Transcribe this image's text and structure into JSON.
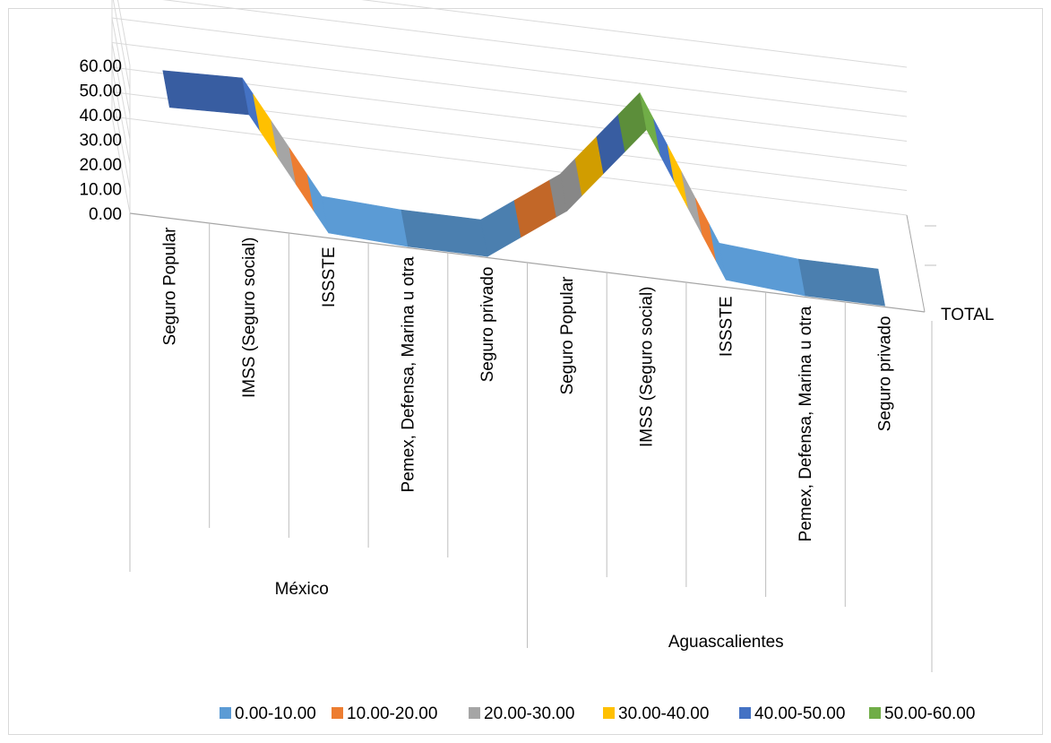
{
  "chart_data": {
    "type": "surface",
    "title": "",
    "z_axis": {
      "ticks": [
        "0.00",
        "10.00",
        "20.00",
        "30.00",
        "40.00",
        "50.00",
        "60.00"
      ],
      "range": [
        0,
        60
      ]
    },
    "groups": [
      {
        "name": "México",
        "categories": [
          "Seguro Popular",
          "IMSS (Seguro social)",
          "ISSSTE",
          "Pemex, Defensa, Marina u otra",
          "Seguro privado"
        ]
      },
      {
        "name": "Aguascalientes",
        "categories": [
          "Seguro Popular",
          "IMSS (Seguro social)",
          "ISSSTE",
          "Pemex, Defensa, Marina u otra",
          "Seguro privado"
        ]
      }
    ],
    "series": [
      {
        "name": "TOTAL",
        "values": [
          45,
          46,
          2,
          0.5,
          0.5,
          23,
          60,
          3,
          0.5,
          0.5
        ]
      }
    ],
    "legend": {
      "position": "bottom",
      "bands": [
        {
          "label": "0.00-10.00",
          "color": "#5b9bd5"
        },
        {
          "label": "10.00-20.00",
          "color": "#ed7d31"
        },
        {
          "label": "20.00-30.00",
          "color": "#a5a5a5"
        },
        {
          "label": "30.00-40.00",
          "color": "#ffc000"
        },
        {
          "label": "40.00-50.00",
          "color": "#4472c4"
        },
        {
          "label": "50.00-60.00",
          "color": "#70ad47"
        }
      ]
    },
    "grid": true
  }
}
